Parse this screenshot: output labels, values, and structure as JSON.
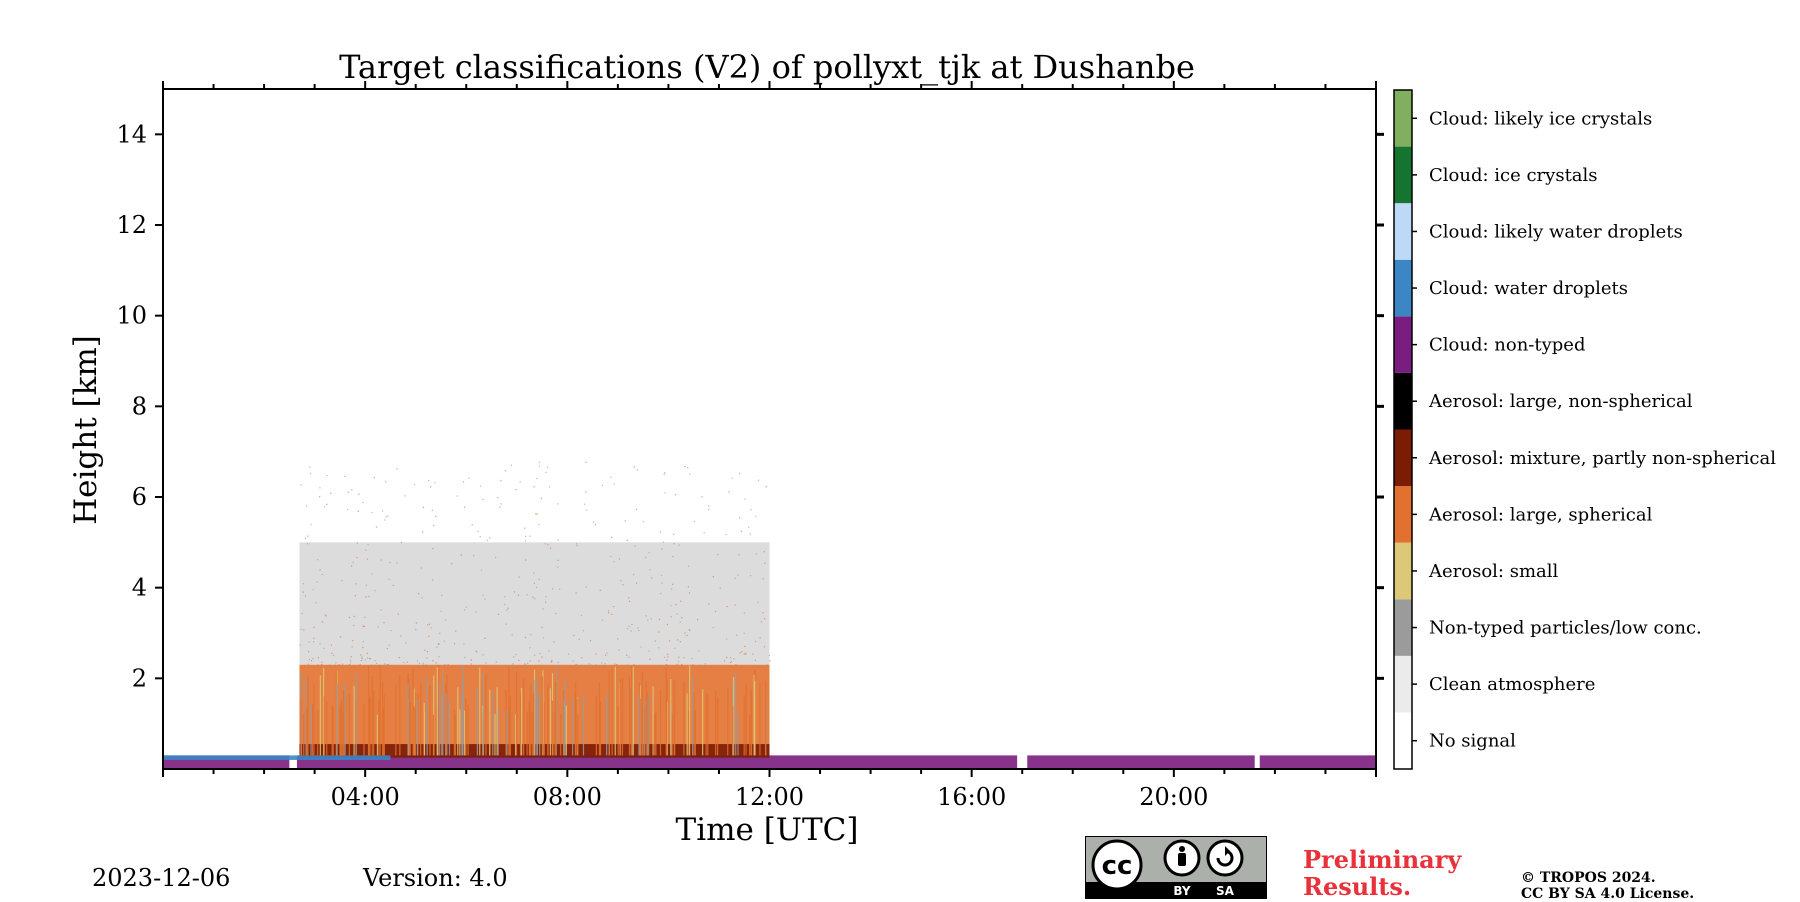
{
  "chart_data": {
    "type": "heatmap",
    "title": "Target classifications (V2) of pollyxt_tjk at Dushanbe",
    "xlabel": "Time [UTC]",
    "ylabel": "Height [km]",
    "xlim": [
      0,
      24
    ],
    "ylim": [
      0,
      15
    ],
    "x_ticks": [
      "04:00",
      "08:00",
      "12:00",
      "16:00",
      "20:00"
    ],
    "x_tick_values": [
      4,
      8,
      12,
      16,
      20
    ],
    "y_ticks": [
      "2",
      "4",
      "6",
      "8",
      "10",
      "12",
      "14"
    ],
    "y_tick_values": [
      2,
      4,
      6,
      8,
      10,
      12,
      14
    ],
    "legend_position": "right (colorbar)",
    "classes": [
      {
        "label": "No signal",
        "color": "#ffffff"
      },
      {
        "label": "Clean atmosphere",
        "color": "#ebebeb"
      },
      {
        "label": "Non-typed particles/low conc.",
        "color": "#9b9b9b"
      },
      {
        "label": "Aerosol: small",
        "color": "#ddc877"
      },
      {
        "label": "Aerosol: large, spherical",
        "color": "#e2712f"
      },
      {
        "label": "Aerosol: mixture, partly non-spherical",
        "color": "#7b1c05"
      },
      {
        "label": "Aerosol: large, non-spherical",
        "color": "#000000"
      },
      {
        "label": "Cloud: non-typed",
        "color": "#7a1d80"
      },
      {
        "label": "Cloud: water droplets",
        "color": "#3c86c5"
      },
      {
        "label": "Cloud: likely water droplets",
        "color": "#bcdaf5"
      },
      {
        "label": "Cloud: ice crystals",
        "color": "#157430"
      },
      {
        "label": "Cloud: likely ice crystals",
        "color": "#80af5f"
      }
    ],
    "regions": [
      {
        "class": "Cloud: non-typed",
        "t_start": 0.0,
        "t_end": 2.5,
        "h_bottom": 0.0,
        "h_top": 0.3
      },
      {
        "class": "Cloud: non-typed",
        "t_start": 2.65,
        "t_end": 16.9,
        "h_bottom": 0.0,
        "h_top": 0.3
      },
      {
        "class": "Cloud: non-typed",
        "t_start": 17.1,
        "t_end": 21.6,
        "h_bottom": 0.0,
        "h_top": 0.3
      },
      {
        "class": "Cloud: non-typed",
        "t_start": 21.7,
        "t_end": 24.0,
        "h_bottom": 0.0,
        "h_top": 0.3
      },
      {
        "class": "Aerosol: large, spherical",
        "t_start": 2.7,
        "t_end": 12.0,
        "h_bottom": 0.3,
        "h_top": 2.3
      },
      {
        "class": "Aerosol: mixture, partly non-spherical",
        "t_start": 2.7,
        "t_end": 12.0,
        "h_bottom": 0.25,
        "h_top": 0.55
      },
      {
        "class": "Cloud: water droplets",
        "t_start": 0.0,
        "t_end": 4.5,
        "h_bottom": 0.2,
        "h_top": 0.3
      },
      {
        "class": "Non-typed particles/low conc.",
        "t_start": 2.7,
        "t_end": 12.0,
        "h_bottom": 2.3,
        "h_top": 5.0
      }
    ]
  },
  "footer": {
    "date": "2023-12-06",
    "version": "Version: 4.0",
    "preliminary_line1": "Preliminary",
    "preliminary_line2": "Results.",
    "copyright_line1": "© TROPOS 2024.",
    "copyright_line2": "CC BY SA 4.0 License.",
    "cc_badge_text": "cc",
    "cc_by": "BY",
    "cc_sa": "SA"
  }
}
